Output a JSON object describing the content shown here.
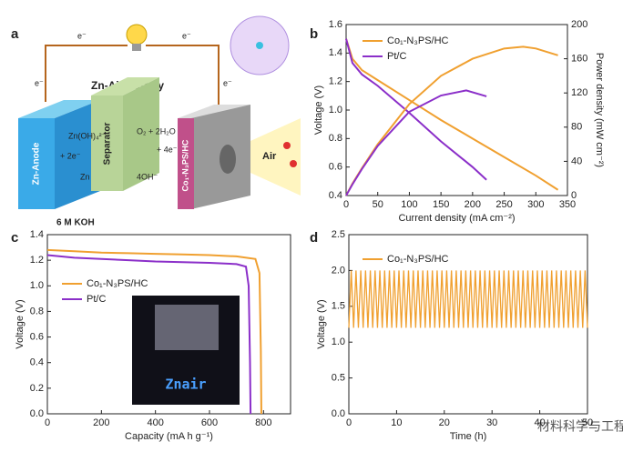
{
  "diagram": {
    "label": "a",
    "title": "Zn-Air Battery",
    "electrons": [
      "e⁻",
      "e⁻",
      "e⁻",
      "e⁻"
    ],
    "anode_reaction": "Zn(OH)₄²⁻",
    "anode_metal": "Zn",
    "anode_electrons": "+ 2e⁻",
    "cathode_reaction": "O₂ + 2H₂O",
    "cathode_electrons": "+ 4e⁻",
    "cathode_product": "4OH⁻",
    "anode": "Zn-Anode",
    "separator": "Separator",
    "cathode": "Co₁-N₃PS/HC",
    "air": "Air",
    "electrolyte": "6 M KOH"
  },
  "watermark": "材料科学与工程",
  "chart_data": [
    {
      "type": "line",
      "label": "b",
      "xlabel": "Current density (mA cm⁻²)",
      "ylabel": "Voltage (V)",
      "y2label": "Power density (mW cm⁻²)",
      "xlim": [
        0,
        350
      ],
      "xticks": [
        0,
        50,
        100,
        150,
        200,
        250,
        300,
        350
      ],
      "ylim": [
        0.4,
        1.6
      ],
      "yticks": [
        0.4,
        0.6,
        0.8,
        {
          "value": 1.0,
          "label": "1.0"
        },
        1.2,
        1.4,
        1.6
      ],
      "y2lim": [
        0,
        200
      ],
      "y2ticks": [
        0,
        40,
        80,
        120,
        160,
        200
      ],
      "legend": "upper left",
      "series": [
        {
          "name": "Co₁-N₃PS/HC",
          "color": "#f0a030",
          "x": [
            0,
            10,
            25,
            50,
            100,
            150,
            200,
            250,
            300,
            335
          ],
          "values": [
            1.5,
            1.36,
            1.28,
            1.21,
            1.07,
            0.93,
            0.8,
            0.67,
            0.54,
            0.44
          ]
        },
        {
          "name": "Pt/C",
          "color": "#8b2fc9",
          "x": [
            0,
            10,
            25,
            50,
            100,
            150,
            200,
            222
          ],
          "values": [
            1.5,
            1.33,
            1.25,
            1.17,
            0.98,
            0.78,
            0.6,
            0.51
          ]
        },
        {
          "color": "#f0a030",
          "axis": "y2",
          "x": [
            0,
            10,
            25,
            50,
            100,
            150,
            200,
            250,
            280,
            300,
            335
          ],
          "values": [
            0,
            14,
            32,
            60,
            107,
            140,
            160,
            172,
            174,
            172,
            164
          ]
        },
        {
          "color": "#8b2fc9",
          "axis": "y2",
          "x": [
            0,
            10,
            25,
            50,
            100,
            150,
            190,
            222
          ],
          "values": [
            0,
            13,
            31,
            58,
            98,
            117,
            123,
            116
          ]
        }
      ]
    },
    {
      "type": "line",
      "label": "c",
      "xlabel": "Capacity (mA h g⁻¹)",
      "ylabel": "Voltage (V)",
      "inset_text": "Znair",
      "xlim": [
        0,
        900
      ],
      "xticks": [
        0,
        200,
        400,
        600,
        800
      ],
      "ylim": [
        0,
        1.4
      ],
      "yticks": [
        {
          "value": 0,
          "label": "0.0"
        },
        0.2,
        0.4,
        0.6,
        0.8,
        {
          "value": 1.0,
          "label": "1.0"
        },
        1.2,
        1.4
      ],
      "legend": "upper left",
      "series": [
        {
          "name": "Co₁-N₃PS/HC",
          "color": "#f0a030",
          "x": [
            0,
            100,
            200,
            300,
            400,
            500,
            600,
            700,
            770,
            785,
            790,
            792
          ],
          "values": [
            1.28,
            1.27,
            1.26,
            1.255,
            1.25,
            1.245,
            1.24,
            1.23,
            1.21,
            1.1,
            0.5,
            0
          ]
        },
        {
          "name": "Pt/C",
          "color": "#8b2fc9",
          "x": [
            0,
            100,
            200,
            300,
            400,
            500,
            600,
            700,
            735,
            745,
            750,
            752
          ],
          "values": [
            1.24,
            1.22,
            1.21,
            1.2,
            1.19,
            1.185,
            1.18,
            1.17,
            1.15,
            1.0,
            0.4,
            0
          ]
        }
      ]
    },
    {
      "type": "line",
      "label": "d",
      "xlabel": "Time (h)",
      "ylabel": "Voltage (V)",
      "xlim": [
        0,
        50
      ],
      "xticks": [
        0,
        10,
        20,
        30,
        40,
        50
      ],
      "ylim": [
        0,
        2.5
      ],
      "yticks": [
        {
          "value": 0,
          "label": "0.0"
        },
        0.5,
        {
          "value": 1.0,
          "label": "1.0"
        },
        1.5,
        {
          "value": 2.0,
          "label": "2.0"
        },
        2.5
      ],
      "legend": "upper left",
      "series": [
        {
          "name": "Co₁-N₃PS/HC",
          "color": "#f0a030",
          "x": [
            0,
            0.5,
            1,
            1.5,
            2,
            2.5,
            3,
            3.5,
            4,
            4.5,
            5,
            5.5,
            6,
            6.5,
            7,
            7.5,
            8,
            8.5,
            9,
            9.5,
            10,
            10.5,
            11,
            11.5,
            12,
            12.5,
            13,
            13.5,
            14,
            14.5,
            15,
            15.5,
            16,
            16.5,
            17,
            17.5,
            18,
            18.5,
            19,
            19.5,
            20,
            20.5,
            21,
            21.5,
            22,
            22.5,
            23,
            23.5,
            24,
            24.5,
            25,
            25.5,
            26,
            26.5,
            27,
            27.5,
            28,
            28.5,
            29,
            29.5,
            30,
            30.5,
            31,
            31.5,
            32,
            32.5,
            33,
            33.5,
            34,
            34.5,
            35,
            35.5,
            36,
            36.5,
            37,
            37.5,
            38,
            38.5,
            39,
            39.5,
            40,
            40.5,
            41,
            41.5,
            42,
            42.5,
            43,
            43.5,
            44,
            44.5,
            45,
            45.5,
            46,
            46.5,
            47,
            47.5,
            48,
            48.5,
            49,
            49.5,
            50
          ],
          "values": [
            1.2,
            2.0,
            1.2,
            2.0,
            1.2,
            2.0,
            1.2,
            2.0,
            1.2,
            2.0,
            1.2,
            2.0,
            1.2,
            2.0,
            1.2,
            2.0,
            1.2,
            2.0,
            1.2,
            2.0,
            1.2,
            2.0,
            1.2,
            2.0,
            1.2,
            2.0,
            1.2,
            2.0,
            1.2,
            2.0,
            1.2,
            2.0,
            1.2,
            2.0,
            1.2,
            2.0,
            1.2,
            2.0,
            1.2,
            2.0,
            1.2,
            2.0,
            1.2,
            2.0,
            1.2,
            2.0,
            1.2,
            2.0,
            1.2,
            2.0,
            1.2,
            2.0,
            1.2,
            2.0,
            1.2,
            2.0,
            1.2,
            2.0,
            1.2,
            2.0,
            1.2,
            2.0,
            1.2,
            2.0,
            1.2,
            2.0,
            1.2,
            2.0,
            1.2,
            2.0,
            1.2,
            2.0,
            1.2,
            2.0,
            1.2,
            2.0,
            1.2,
            2.0,
            1.2,
            2.0,
            1.2,
            2.0,
            1.2,
            2.0,
            1.2,
            2.0,
            1.2,
            2.0,
            1.2,
            2.0,
            1.2,
            2.0,
            1.2,
            2.0,
            1.2,
            2.0,
            1.2,
            2.0,
            1.2,
            2.0,
            1.2
          ]
        }
      ]
    }
  ]
}
